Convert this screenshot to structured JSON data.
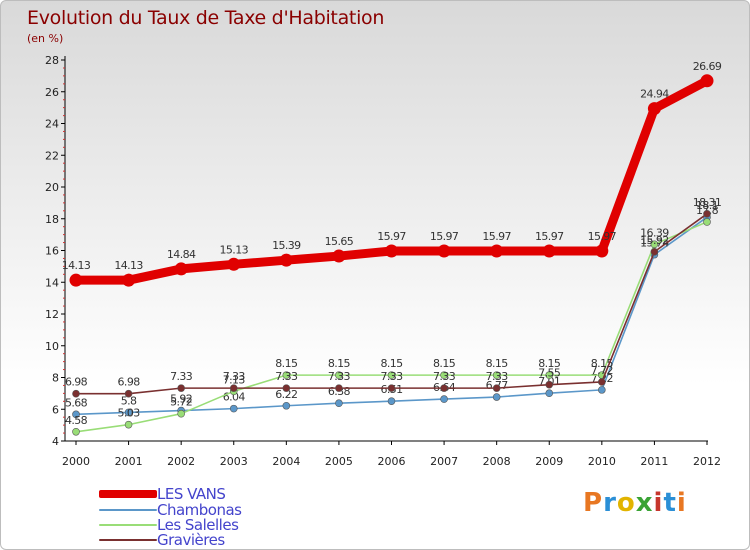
{
  "title": "Evolution du Taux de Taxe d'Habitation",
  "unit": "(en %)",
  "logo": {
    "text": "Proxiti",
    "colors": [
      "#e87722",
      "#2b8fd6",
      "#e2b400",
      "#3aa335",
      "#c6362d",
      "#2b8fd6",
      "#e87722"
    ]
  },
  "chart_data": {
    "type": "line",
    "x": [
      "2000",
      "2001",
      "2002",
      "2003",
      "2004",
      "2005",
      "2006",
      "2007",
      "2008",
      "2009",
      "2010",
      "2011",
      "2012"
    ],
    "ylim": [
      4,
      28
    ],
    "yticks": [
      "4",
      "6",
      "8",
      "10",
      "12",
      "14",
      "16",
      "18",
      "20",
      "22",
      "24",
      "26",
      "28"
    ],
    "grid": false,
    "legend_position": "bottom-left",
    "series": [
      {
        "name": "LES VANS",
        "color": "#e00000",
        "values": [
          14.13,
          14.13,
          14.84,
          15.13,
          15.39,
          15.65,
          15.97,
          15.97,
          15.97,
          15.97,
          15.97,
          24.94,
          26.69
        ],
        "labels": [
          "14.13",
          "14.13",
          "14.84",
          "15.13",
          "15.39",
          "15.65",
          "15.97",
          "15.97",
          "15.97",
          "15.97",
          "15.97",
          "24.94",
          "26.69"
        ]
      },
      {
        "name": "Chambonas",
        "color": "#5b97c9",
        "values": [
          5.68,
          5.8,
          5.92,
          6.04,
          6.22,
          6.38,
          6.51,
          6.64,
          6.77,
          7.01,
          7.22,
          15.74,
          18.1
        ],
        "labels": [
          "5.68",
          "5.8",
          "5.92",
          "6.04",
          "6.22",
          "6.38",
          "6.51",
          "6.64",
          "6.77",
          "7.01",
          "7.22",
          "15.74",
          "18.1"
        ]
      },
      {
        "name": "Les Salelles",
        "color": "#99dd77",
        "values": [
          4.58,
          5.03,
          5.72,
          7.13,
          8.15,
          8.15,
          8.15,
          8.15,
          8.15,
          8.15,
          8.15,
          16.39,
          17.8
        ],
        "labels": [
          "4.58",
          "5.03",
          "5.72",
          "7.13",
          "8.15",
          "8.15",
          "8.15",
          "8.15",
          "8.15",
          "8.15",
          "8.15",
          "16.39",
          "17.8"
        ]
      },
      {
        "name": "Gravières",
        "color": "#7a3030",
        "values": [
          6.98,
          6.98,
          7.33,
          7.33,
          7.33,
          7.33,
          7.33,
          7.33,
          7.33,
          7.55,
          7.72,
          15.92,
          18.31
        ],
        "labels": [
          "6.98",
          "6.98",
          "7.33",
          "7.33",
          "7.33",
          "7.33",
          "7.33",
          "7.33",
          "7.33",
          "7.55",
          "7.72",
          "15.92",
          "18.31"
        ]
      }
    ]
  }
}
